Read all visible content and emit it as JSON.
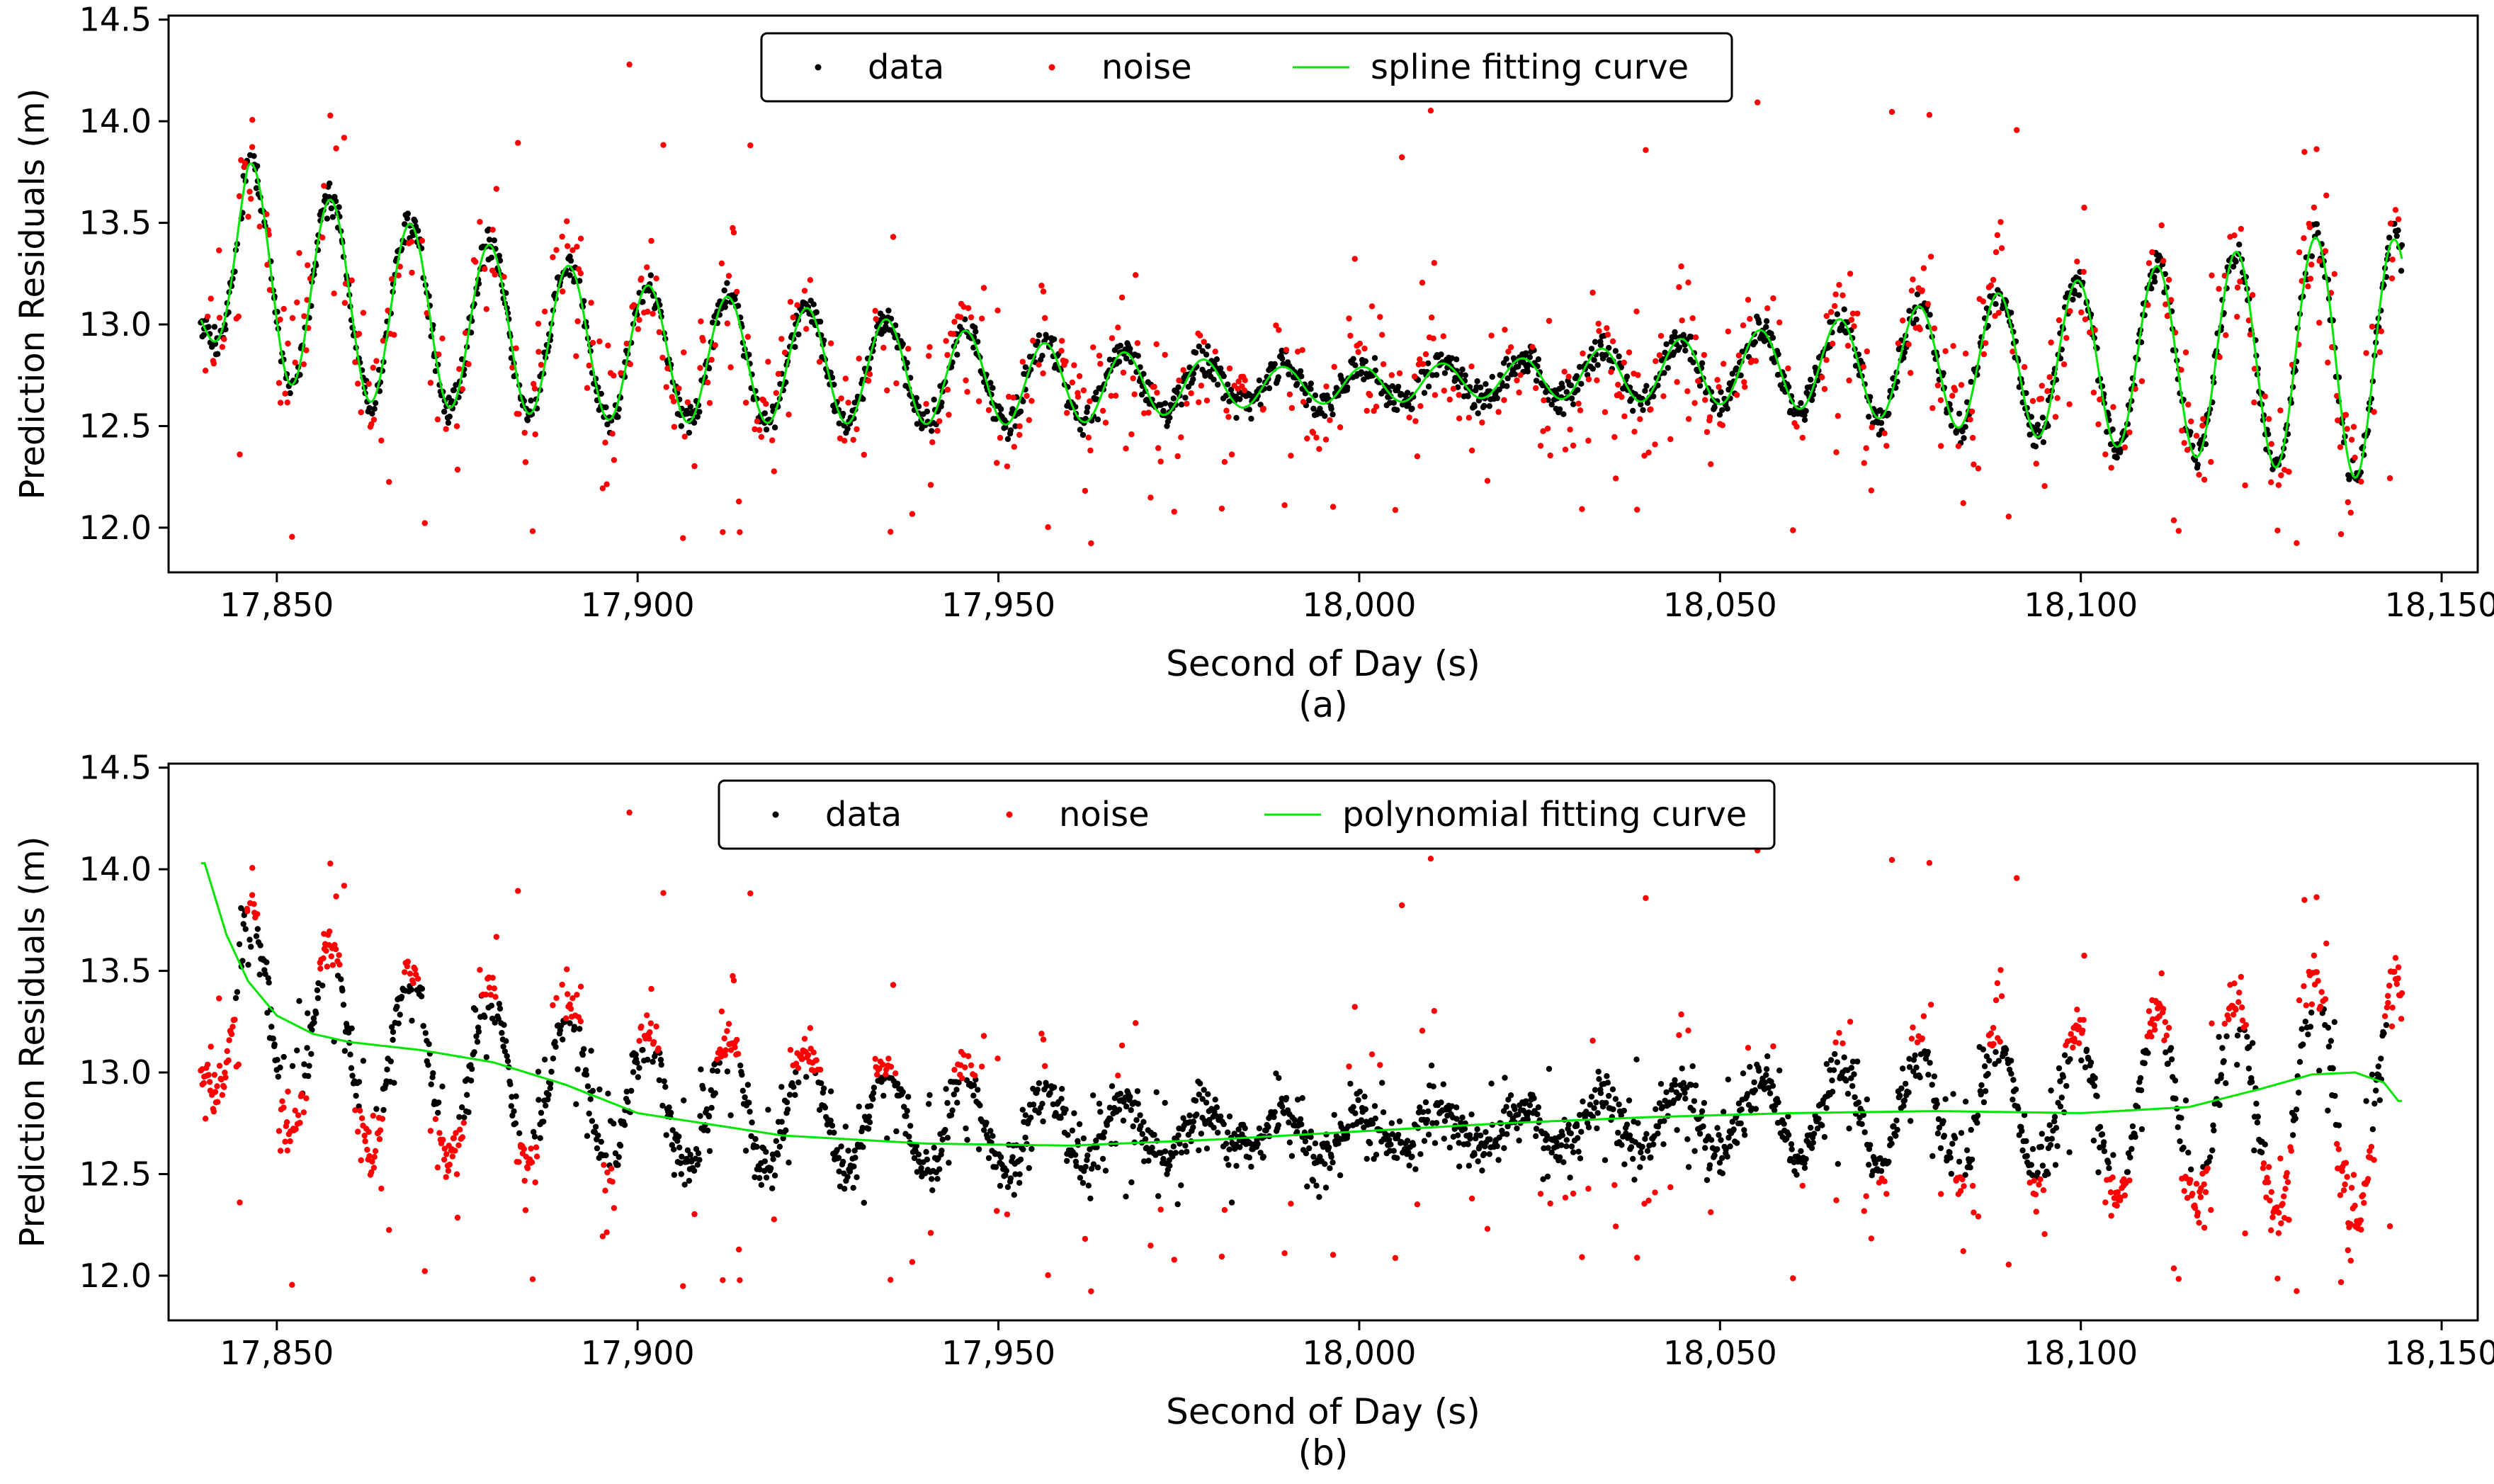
{
  "chart_data": [
    {
      "type": "scatter",
      "panel_label": "(a)",
      "xlabel": "Second of Day (s)",
      "ylabel": "Prediction Residuals (m)",
      "xlim": [
        17835,
        18155
      ],
      "ylim": [
        11.78,
        14.52
      ],
      "xticks": [
        17850,
        17900,
        17950,
        18000,
        18050,
        18100,
        18150
      ],
      "xtick_labels": [
        "17,850",
        "17,900",
        "17,950",
        "18,000",
        "18,050",
        "18,100",
        "18,150"
      ],
      "yticks": [
        12.0,
        12.5,
        13.0,
        13.5,
        14.0,
        14.5
      ],
      "ytick_labels": [
        "12.0",
        "12.5",
        "13.0",
        "13.5",
        "14.0",
        "14.5"
      ],
      "legend_position": "top-center",
      "legend": [
        {
          "label": "data",
          "kind": "dot",
          "color": "#000000"
        },
        {
          "label": "noise",
          "kind": "dot",
          "color": "#ff0000"
        },
        {
          "label": "spline fitting curve",
          "kind": "line",
          "color": "#00e600"
        }
      ],
      "fit": "spline",
      "signal": {
        "x_range": [
          17839.5,
          18144.5
        ],
        "period_s": 11.0,
        "first_peak_x": 17846.5,
        "center_anchors": [
          [
            17839.5,
            13.12
          ],
          [
            17846,
            13.28
          ],
          [
            17860,
            13.1
          ],
          [
            17900,
            12.86
          ],
          [
            17960,
            12.7
          ],
          [
            18000,
            12.7
          ],
          [
            18050,
            12.78
          ],
          [
            18100,
            12.82
          ],
          [
            18144,
            12.86
          ]
        ],
        "amplitude_anchors": [
          [
            17839.5,
            0.15
          ],
          [
            17846,
            0.52
          ],
          [
            17870,
            0.44
          ],
          [
            17900,
            0.34
          ],
          [
            17950,
            0.22
          ],
          [
            17990,
            0.09
          ],
          [
            18020,
            0.09
          ],
          [
            18060,
            0.2
          ],
          [
            18100,
            0.4
          ],
          [
            18140,
            0.62
          ],
          [
            18144,
            0.55
          ]
        ]
      },
      "series": [
        {
          "name": "data",
          "marker": "dot",
          "color": "#000000",
          "rule": "within 0.08 m of fitting curve"
        },
        {
          "name": "noise",
          "marker": "dot",
          "color": "#ff0000",
          "rule": "outside tolerance band"
        },
        {
          "name": "spline fitting curve",
          "marker": "line",
          "color": "#00e600",
          "follows": "signal"
        }
      ]
    },
    {
      "type": "scatter",
      "panel_label": "(b)",
      "xlabel": "Second of Day (s)",
      "ylabel": "Prediction Residuals (m)",
      "xlim": [
        17835,
        18155
      ],
      "ylim": [
        11.78,
        14.52
      ],
      "xticks": [
        17850,
        17900,
        17950,
        18000,
        18050,
        18100,
        18150
      ],
      "xtick_labels": [
        "17,850",
        "17,900",
        "17,950",
        "18,000",
        "18,050",
        "18,100",
        "18,150"
      ],
      "yticks": [
        12.0,
        12.5,
        13.0,
        13.5,
        14.0,
        14.5
      ],
      "ytick_labels": [
        "12.0",
        "12.5",
        "13.0",
        "13.5",
        "14.0",
        "14.5"
      ],
      "legend_position": "top-center",
      "legend": [
        {
          "label": "data",
          "kind": "dot",
          "color": "#000000"
        },
        {
          "label": "noise",
          "kind": "dot",
          "color": "#ff0000"
        },
        {
          "label": "polynomial fitting curve",
          "kind": "line",
          "color": "#00e600"
        }
      ],
      "fit": "polynomial",
      "fit_curve": {
        "x": [
          17840,
          17843,
          17846,
          17850,
          17855,
          17860,
          17870,
          17880,
          17890,
          17900,
          17920,
          17940,
          17960,
          17980,
          18000,
          18020,
          18040,
          18060,
          18080,
          18100,
          18115,
          18125,
          18132,
          18138,
          18142,
          18144
        ],
        "y": [
          14.03,
          13.68,
          13.45,
          13.28,
          13.19,
          13.15,
          13.11,
          13.05,
          12.94,
          12.8,
          12.69,
          12.65,
          12.64,
          12.67,
          12.71,
          12.75,
          12.78,
          12.8,
          12.81,
          12.8,
          12.83,
          12.92,
          12.99,
          13.0,
          12.95,
          12.86
        ]
      },
      "series": [
        {
          "name": "data",
          "marker": "dot",
          "color": "#000000",
          "rule": "within 0.32 m of polynomial curve"
        },
        {
          "name": "noise",
          "marker": "dot",
          "color": "#ff0000",
          "rule": "outside tolerance band"
        },
        {
          "name": "polynomial fitting curve",
          "marker": "line",
          "color": "#00e600",
          "follows": "fit_curve"
        }
      ]
    }
  ]
}
